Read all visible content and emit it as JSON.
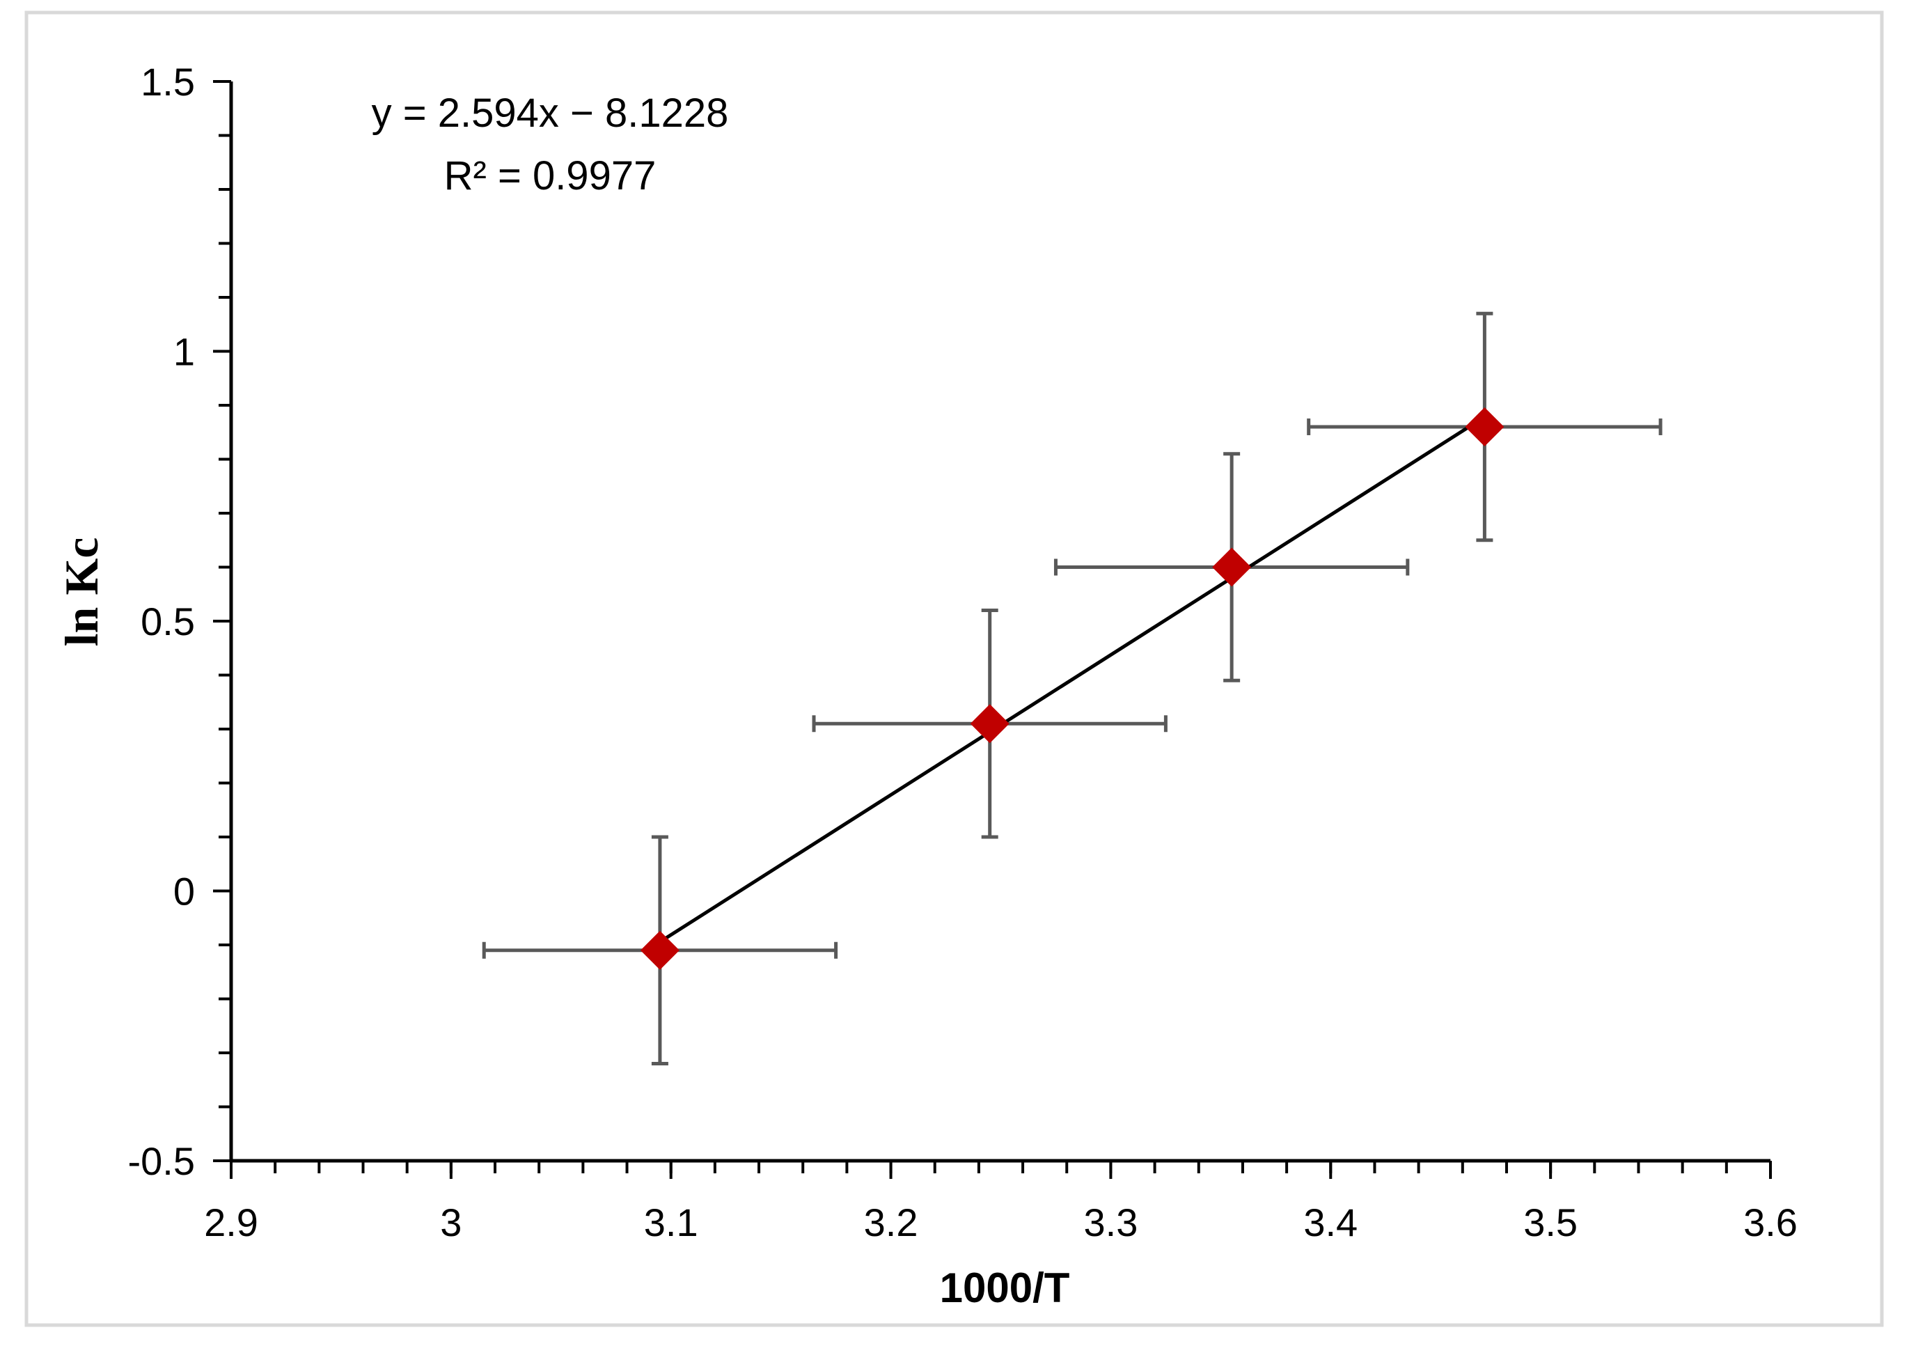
{
  "chart_data": {
    "type": "scatter",
    "title": "",
    "xlabel": "1000/T",
    "ylabel": "ln Kc",
    "xlim": [
      2.9,
      3.6
    ],
    "ylim": [
      -0.5,
      1.5
    ],
    "x_ticks": [
      2.9,
      3.0,
      3.1,
      3.2,
      3.3,
      3.4,
      3.5,
      3.6
    ],
    "x_tick_labels": [
      "2.9",
      "3",
      "3.1",
      "3.2",
      "3.3",
      "3.4",
      "3.5",
      "3.6"
    ],
    "x_minor_step": 0.02,
    "y_ticks": [
      -0.5,
      0,
      0.5,
      1,
      1.5
    ],
    "y_tick_labels": [
      "-0.5",
      "0",
      "0.5",
      "1",
      "1.5"
    ],
    "y_minor_step": 0.1,
    "grid": false,
    "series": [
      {
        "name": "ln Kc",
        "marker": "diamond",
        "color": "#c00000",
        "x": [
          3.095,
          3.245,
          3.355,
          3.47
        ],
        "y": [
          -0.11,
          0.31,
          0.6,
          0.86
        ],
        "x_err": 0.08,
        "y_err": 0.21
      }
    ],
    "trendline": {
      "slope": 2.594,
      "intercept": -8.1228,
      "x_range": [
        3.095,
        3.47
      ],
      "color": "#000000"
    },
    "annotations": {
      "equation": "y = 2.594x − 8.1228",
      "r_squared": "R² = 0.9977"
    },
    "colors": {
      "marker": "#c00000",
      "error_bar": "#595959",
      "axis": "#000000",
      "frame": "#d9d9d9"
    }
  }
}
